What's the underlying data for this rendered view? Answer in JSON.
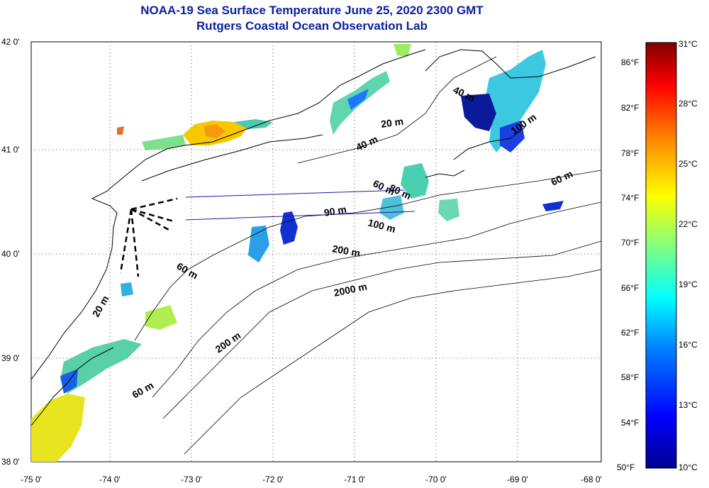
{
  "title": {
    "line1": "NOAA-19 Sea Surface Temperature June 25, 2020 2300 GMT",
    "line2": "Rutgers Coastal Ocean Observation Lab"
  },
  "axes": {
    "lon_labels": [
      "-75 0'",
      "-74 0'",
      "-73 0'",
      "-72 0'",
      "-71 0'",
      "-70 0'",
      "-69 0'",
      "-68 0'"
    ],
    "lat_labels": [
      "42 0'",
      "41 0'",
      "40 0'",
      "39 0'",
      "38 0'"
    ]
  },
  "isobaths": [
    "20 m",
    "40 m",
    "60 m",
    "100 m",
    "40 m",
    "60 m",
    "80 m",
    "90 m",
    "100 m",
    "200 m",
    "60 m",
    "20 m",
    "2000 m",
    "200 m",
    "60 m"
  ],
  "colorbar": {
    "fahrenheit": [
      "86°F",
      "82°F",
      "78°F",
      "74°F",
      "70°F",
      "66°F",
      "62°F",
      "58°F",
      "54°F",
      "50°F"
    ],
    "celsius": [
      "31°C",
      "28°C",
      "25°C",
      "22°C",
      "19°C",
      "16°C",
      "13°C",
      "10°C"
    ],
    "colors": [
      "#00008f",
      "#0000ff",
      "#0080ff",
      "#00ffff",
      "#80ff80",
      "#ffff00",
      "#ff8000",
      "#ff0000",
      "#800000"
    ]
  },
  "colors": {
    "title": "#0a1f9e",
    "coast": "#000000",
    "transect": "#1a1aa8"
  }
}
